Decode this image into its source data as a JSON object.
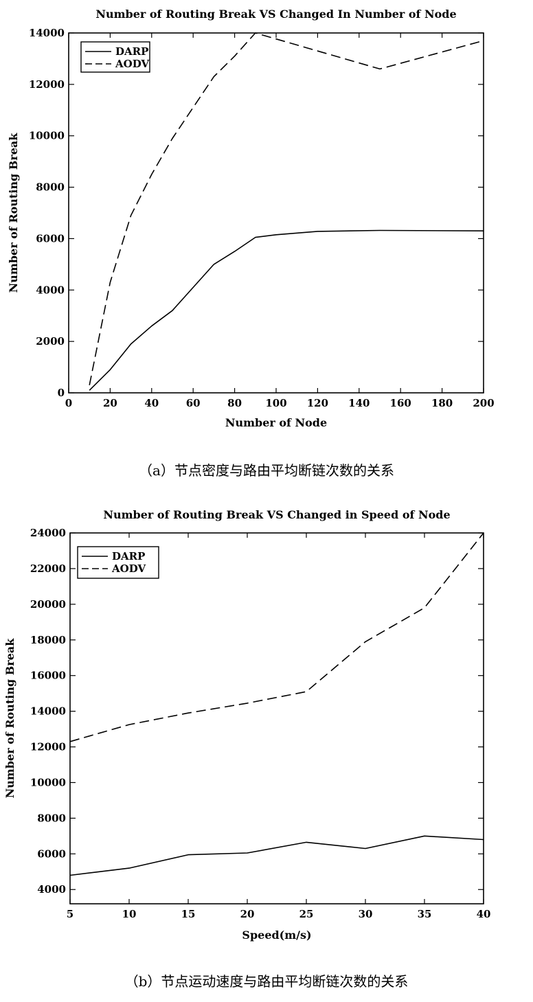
{
  "chart_data": [
    {
      "type": "line",
      "title": "Number of Routing Break VS Changed In Number of Node",
      "xlabel": "Number of Node",
      "ylabel": "Number of Routing Break",
      "xlim": [
        0,
        200
      ],
      "ylim": [
        0,
        14000
      ],
      "xticks": [
        0,
        20,
        40,
        60,
        80,
        100,
        120,
        140,
        160,
        180,
        200
      ],
      "yticks": [
        0,
        2000,
        4000,
        6000,
        8000,
        10000,
        12000,
        14000
      ],
      "grid": false,
      "legend_position": "top-left",
      "caption": "（a）节点密度与路由平均断链次数的关系",
      "series": [
        {
          "name": "DARP",
          "style": "solid",
          "x": [
            10,
            20,
            30,
            40,
            50,
            60,
            70,
            80,
            90,
            100,
            120,
            150,
            200
          ],
          "y": [
            100,
            900,
            1900,
            2600,
            3200,
            4100,
            5000,
            5500,
            6050,
            6150,
            6280,
            6320,
            6300
          ]
        },
        {
          "name": "AODV",
          "style": "dashed",
          "x": [
            10,
            20,
            30,
            40,
            50,
            60,
            70,
            80,
            90,
            150,
            200
          ],
          "y": [
            300,
            4300,
            6900,
            8500,
            9900,
            11100,
            12300,
            13100,
            14000,
            12600,
            13700
          ]
        }
      ]
    },
    {
      "type": "line",
      "title": "Number of Routing Break VS Changed in Speed of Node",
      "xlabel": "Speed(m/s)",
      "ylabel": "Number of Routing Break",
      "xlim": [
        5,
        40
      ],
      "ylim": [
        3200,
        24000
      ],
      "xticks": [
        5,
        10,
        15,
        20,
        25,
        30,
        35,
        40
      ],
      "yticks": [
        4000,
        6000,
        8000,
        10000,
        12000,
        14000,
        16000,
        18000,
        20000,
        22000,
        24000
      ],
      "grid": false,
      "legend_position": "top-left",
      "caption": "（b）节点运动速度与路由平均断链次数的关系",
      "series": [
        {
          "name": "DARP",
          "style": "solid",
          "x": [
            5,
            10,
            15,
            20,
            25,
            30,
            35,
            40
          ],
          "y": [
            4800,
            5200,
            5950,
            6050,
            6650,
            6300,
            7000,
            6800
          ]
        },
        {
          "name": "AODV",
          "style": "dashed",
          "x": [
            5,
            10,
            15,
            20,
            25,
            30,
            35,
            40
          ],
          "y": [
            12300,
            13250,
            13900,
            14450,
            15100,
            17900,
            19800,
            24000
          ]
        }
      ]
    }
  ]
}
